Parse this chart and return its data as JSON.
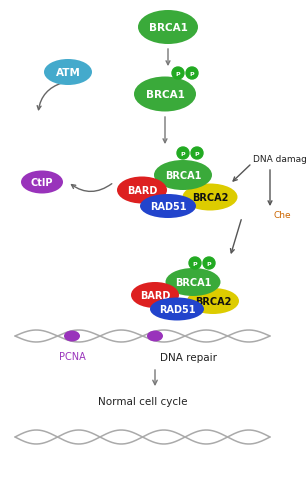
{
  "bg_color": "#ffffff",
  "figsize": [
    3.07,
    4.81
  ],
  "dpi": 100,
  "colors": {
    "green_brca1": "#3aaa3a",
    "red": "#dd2020",
    "blue": "#2244cc",
    "yellow": "#ddcc00",
    "purple": "#9933bb",
    "cyan": "#44aacc",
    "phospho": "#22aa22",
    "arrow": "#777777",
    "text_dark": "#222222",
    "text_check": "#cc6600",
    "dna_line": "#aaaaaa"
  },
  "labels": {
    "brca1": "BRCA1",
    "atm": "ATM",
    "bard": "BARD",
    "rad51": "RAD51",
    "brca2": "BRCA2",
    "ctip": "CtIP",
    "p": "P",
    "dna_damage": "DNA damage",
    "checkpoint": "Che",
    "pcna": "PCNA",
    "dna_repair": "DNA repair",
    "normal_cell": "Normal cell cycle"
  }
}
